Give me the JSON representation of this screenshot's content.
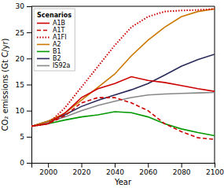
{
  "chart_data": {
    "type": "line",
    "xlabel": "Year",
    "ylabel": "CO₂ emissions (Gt C/yr)",
    "x": [
      1990,
      2000,
      2010,
      2020,
      2030,
      2040,
      2050,
      2060,
      2070,
      2080,
      2090,
      2100
    ],
    "series": [
      {
        "name": "A1B",
        "color": "#cc0000",
        "line_style": "solid",
        "values": [
          7.0,
          7.5,
          9.5,
          12.5,
          14.2,
          15.2,
          16.5,
          15.8,
          15.4,
          14.8,
          14.2,
          13.7
        ]
      },
      {
        "name": "A1T",
        "color": "#cc0000",
        "line_style": "dashed",
        "values": [
          7.0,
          7.5,
          9.0,
          11.5,
          12.5,
          12.5,
          11.5,
          10.0,
          7.5,
          6.0,
          4.8,
          4.5
        ]
      },
      {
        "name": "A1FI",
        "color": "#cc0000",
        "line_style": "dotted",
        "values": [
          7.0,
          7.5,
          10.5,
          14.5,
          18.5,
          22.5,
          26.0,
          28.0,
          29.0,
          29.2,
          29.3,
          29.5
        ]
      },
      {
        "name": "A2",
        "color": "#cc7700",
        "line_style": "solid",
        "values": [
          7.0,
          8.0,
          9.5,
          12.0,
          14.5,
          17.0,
          20.5,
          23.5,
          26.0,
          28.0,
          29.0,
          29.5
        ]
      },
      {
        "name": "B1",
        "color": "#009900",
        "line_style": "solid",
        "values": [
          7.0,
          7.5,
          8.2,
          8.8,
          9.2,
          9.8,
          9.6,
          8.8,
          7.5,
          6.5,
          5.8,
          5.2
        ]
      },
      {
        "name": "B2",
        "color": "#2a2a5a",
        "line_style": "solid",
        "values": [
          7.0,
          8.0,
          9.2,
          10.8,
          12.0,
          13.0,
          14.0,
          15.2,
          16.8,
          18.5,
          19.8,
          20.8
        ]
      },
      {
        "name": "IS92a",
        "color": "#888888",
        "line_style": "solid",
        "values": [
          7.0,
          7.8,
          8.8,
          10.0,
          11.0,
          11.8,
          12.5,
          13.0,
          13.2,
          13.3,
          13.4,
          13.5
        ]
      }
    ],
    "xlim": [
      1990,
      2100
    ],
    "xticks": [
      2000,
      2020,
      2040,
      2060,
      2080,
      2100
    ],
    "ylim": [
      0,
      30
    ],
    "yticks": [
      0,
      5,
      10,
      15,
      20,
      25,
      30
    ],
    "legend_title": "Scenarios",
    "legend": "upper left",
    "grid": false
  }
}
